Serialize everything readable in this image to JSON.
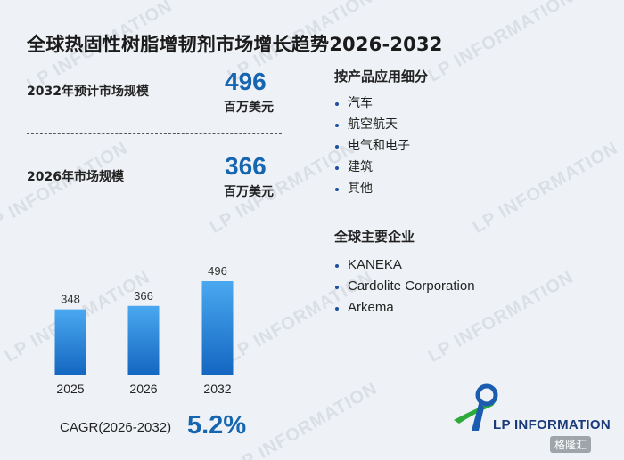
{
  "title": "全球热固性树脂增韧剂市场增长趋势2026-2032",
  "kpis": [
    {
      "label": "2032年预计市场规模",
      "value": "496",
      "unit": "百万美元"
    },
    {
      "label": "2026年市场规模",
      "value": "366",
      "unit": "百万美元"
    }
  ],
  "segments": {
    "title": "按产品应用细分",
    "items": [
      "汽车",
      "航空航天",
      "电气和电子",
      "建筑",
      "其他"
    ]
  },
  "companies": {
    "title": "全球主要企业",
    "items": [
      "KANEKA",
      "Cardolite Corporation",
      "Arkema"
    ]
  },
  "chart_data": {
    "type": "bar",
    "categories": [
      "2025",
      "2026",
      "2032"
    ],
    "values": [
      348,
      366,
      496
    ],
    "data_labels": [
      "348",
      "366",
      "496"
    ],
    "title": "",
    "xlabel": "",
    "ylabel": "",
    "grid": false,
    "bar_color_top": "#4aa8f0",
    "bar_color_bottom": "#1466c0"
  },
  "cagr": {
    "label": "CAGR(2026-2032)",
    "value": "5.2%"
  },
  "brand": {
    "name": "LP INFORMATION",
    "watermark": "LP INFORMATION",
    "badge": "格隆汇"
  },
  "colors": {
    "accent": "#1565b0",
    "logo_green": "#2eaa3a",
    "logo_blue": "#1a5cb0"
  }
}
